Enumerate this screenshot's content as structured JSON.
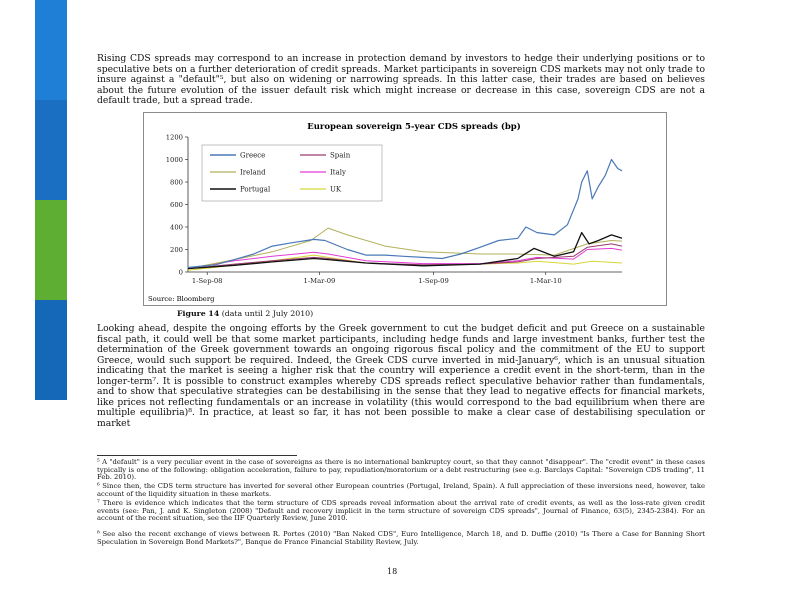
{
  "paragraphs": {
    "p1": "Rising CDS spreads may correspond to an increase in protection demand by investors to hedge their underlying positions or to speculative bets on a further deterioration of credit spreads. Market participants in sovereign CDS markets may not only trade to insure against a \"default\"⁵, but also on widening or narrowing spreads. In this latter case, their trades are based on believes about the future evolution of the issuer default risk which might increase or decrease in this case, sovereign CDS are not a default trade, but a spread trade.",
    "p2": "Looking ahead, despite the ongoing efforts by the Greek government to cut the budget deficit and put Greece on a sustainable fiscal path, it could well be that some market participants, including hedge funds and large investment banks, further test the determination of the Greek government towards an ongoing rigorous fiscal policy and the commitment of the EU to support Greece, would such support be required. Indeed, the Greek CDS curve inverted in mid-January⁶, which is an unusual situation indicating that the market is seeing a higher risk that the country will experience a credit event in the short-term, than in the longer-term⁷. It is possible to construct examples whereby CDS spreads reflect speculative behavior rather than fundamentals, and to show that speculative strategies can be destabilising in the sense that they lead to negative effects for financial markets, like prices not reflecting fundamentals or an increase in volatility (this would correspond to the bad equilibrium when there are multiple equilibria)⁸. In practice, at least so far, it has not been possible to make a clear case of destabilising speculation or market"
  },
  "figure": {
    "caption_bold": "Figure 14",
    "caption_rest": " (data until 2 July 2010)"
  },
  "footnotes": {
    "fn5": "⁵ A \"default\" is a very peculiar event in the case of sovereigns as there is no international bankruptcy court, so that they cannot \"disappear\". The \"credit event\" in these cases typically is one of the following: obligation acceleration, failure to pay, repudiation/moratorium or a debt restructuring (see e.g. Barclays Capital: \"Sovereign CDS trading\", 11 Feb. 2010).",
    "fn6": "⁶ Since then, the CDS term structure has inverted for several other European countries (Portugal, Ireland, Spain). A full appreciation of these inversions need, however, take account of the liquidity situation in these markets.",
    "fn7": "⁷ There is evidence which indicates that the term structure of CDS spreads reveal information about the arrival rate of credit events, as well as the loss-rate given credit events (see: Pan, J. and K. Singleton (2008) \"Default and recovery implicit in the term structure of sovereign CDS spreads\", Journal of Finance, 63(5), 2345-2384). For an account of the recent situation, see the IIF Quarterly Review, June 2010.",
    "fn8": "⁸ See also the recent exchange of views between R. Portes (2010) \"Ban Naked CDS\", Euro Intelligence, March 18, and D. Duffie (2010) \"Is There a Case for Banning Short Speculation in Sovereign Bond Markets?\", Banque de France Financial Stability Review, July."
  },
  "page_number": "18",
  "chart_data": {
    "type": "line",
    "title": "European sovereign 5-year CDS spreads (bp)",
    "source": "Source: Bloomberg",
    "ylim": [
      0,
      1200
    ],
    "yticks": [
      0,
      200,
      400,
      600,
      800,
      1000,
      1200
    ],
    "xlim": [
      "2008-08-01",
      "2010-07-02"
    ],
    "xticks": [
      {
        "date": "2008-09-01",
        "label": "1-Sep-08"
      },
      {
        "date": "2009-03-01",
        "label": "1-Mar-09"
      },
      {
        "date": "2009-09-01",
        "label": "1-Sep-09"
      },
      {
        "date": "2010-03-01",
        "label": "1-Mar-10"
      }
    ],
    "grid": false,
    "legend_position": "top-left",
    "series": [
      {
        "name": "Greece",
        "color": "#4a78b8",
        "width": 1.2,
        "points": [
          [
            "2008-08-01",
            40
          ],
          [
            "2008-09-15",
            65
          ],
          [
            "2008-10-15",
            110
          ],
          [
            "2008-11-15",
            160
          ],
          [
            "2008-12-15",
            230
          ],
          [
            "2009-01-15",
            260
          ],
          [
            "2009-02-20",
            290
          ],
          [
            "2009-03-10",
            280
          ],
          [
            "2009-04-15",
            200
          ],
          [
            "2009-05-15",
            150
          ],
          [
            "2009-06-15",
            150
          ],
          [
            "2009-07-15",
            140
          ],
          [
            "2009-08-15",
            130
          ],
          [
            "2009-09-15",
            120
          ],
          [
            "2009-10-15",
            160
          ],
          [
            "2009-11-15",
            220
          ],
          [
            "2009-12-15",
            280
          ],
          [
            "2010-01-15",
            300
          ],
          [
            "2010-01-28",
            400
          ],
          [
            "2010-02-15",
            350
          ],
          [
            "2010-03-15",
            330
          ],
          [
            "2010-04-05",
            420
          ],
          [
            "2010-04-22",
            650
          ],
          [
            "2010-04-28",
            800
          ],
          [
            "2010-05-07",
            900
          ],
          [
            "2010-05-15",
            650
          ],
          [
            "2010-05-25",
            760
          ],
          [
            "2010-06-05",
            860
          ],
          [
            "2010-06-15",
            1000
          ],
          [
            "2010-06-25",
            920
          ],
          [
            "2010-07-02",
            900
          ]
        ]
      },
      {
        "name": "Spain",
        "color": "#9a3b6e",
        "width": 1.0,
        "points": [
          [
            "2008-08-01",
            30
          ],
          [
            "2008-10-15",
            70
          ],
          [
            "2008-12-15",
            100
          ],
          [
            "2009-02-20",
            130
          ],
          [
            "2009-03-15",
            120
          ],
          [
            "2009-05-15",
            80
          ],
          [
            "2009-08-15",
            65
          ],
          [
            "2009-11-15",
            70
          ],
          [
            "2010-01-15",
            90
          ],
          [
            "2010-02-15",
            120
          ],
          [
            "2010-04-15",
            140
          ],
          [
            "2010-05-07",
            220
          ],
          [
            "2010-06-15",
            250
          ],
          [
            "2010-07-02",
            230
          ]
        ]
      },
      {
        "name": "Ireland",
        "color": "#b3b05a",
        "width": 1.0,
        "points": [
          [
            "2008-08-01",
            30
          ],
          [
            "2008-10-15",
            110
          ],
          [
            "2008-12-15",
            180
          ],
          [
            "2009-02-15",
            280
          ],
          [
            "2009-03-15",
            390
          ],
          [
            "2009-04-15",
            330
          ],
          [
            "2009-06-15",
            230
          ],
          [
            "2009-08-15",
            180
          ],
          [
            "2009-11-15",
            160
          ],
          [
            "2010-01-15",
            160
          ],
          [
            "2010-03-15",
            150
          ],
          [
            "2010-05-07",
            250
          ],
          [
            "2010-06-15",
            280
          ],
          [
            "2010-07-02",
            275
          ]
        ]
      },
      {
        "name": "Italy",
        "color": "#e23bd6",
        "width": 1.0,
        "points": [
          [
            "2008-08-01",
            35
          ],
          [
            "2008-10-15",
            100
          ],
          [
            "2008-12-15",
            140
          ],
          [
            "2009-02-20",
            175
          ],
          [
            "2009-03-15",
            160
          ],
          [
            "2009-05-15",
            100
          ],
          [
            "2009-08-15",
            75
          ],
          [
            "2009-11-15",
            75
          ],
          [
            "2010-01-15",
            100
          ],
          [
            "2010-02-15",
            130
          ],
          [
            "2010-04-15",
            115
          ],
          [
            "2010-05-07",
            200
          ],
          [
            "2010-06-15",
            210
          ],
          [
            "2010-07-02",
            195
          ]
        ]
      },
      {
        "name": "Portugal",
        "color": "#111111",
        "width": 1.3,
        "points": [
          [
            "2008-08-01",
            30
          ],
          [
            "2008-10-15",
            60
          ],
          [
            "2008-12-15",
            90
          ],
          [
            "2009-02-20",
            120
          ],
          [
            "2009-03-15",
            110
          ],
          [
            "2009-05-15",
            80
          ],
          [
            "2009-08-15",
            55
          ],
          [
            "2009-11-15",
            70
          ],
          [
            "2010-01-15",
            120
          ],
          [
            "2010-02-10",
            210
          ],
          [
            "2010-03-15",
            140
          ],
          [
            "2010-04-15",
            180
          ],
          [
            "2010-04-28",
            350
          ],
          [
            "2010-05-10",
            250
          ],
          [
            "2010-05-25",
            280
          ],
          [
            "2010-06-15",
            330
          ],
          [
            "2010-07-02",
            300
          ]
        ]
      },
      {
        "name": "UK",
        "color": "#d6d63a",
        "width": 1.0,
        "points": [
          [
            "2008-08-01",
            15
          ],
          [
            "2008-10-15",
            60
          ],
          [
            "2008-12-15",
            100
          ],
          [
            "2009-02-20",
            150
          ],
          [
            "2009-03-15",
            130
          ],
          [
            "2009-05-15",
            80
          ],
          [
            "2009-08-15",
            60
          ],
          [
            "2009-11-15",
            70
          ],
          [
            "2010-01-15",
            80
          ],
          [
            "2010-02-15",
            95
          ],
          [
            "2010-04-15",
            70
          ],
          [
            "2010-05-15",
            95
          ],
          [
            "2010-06-15",
            85
          ],
          [
            "2010-07-02",
            80
          ]
        ]
      }
    ]
  }
}
